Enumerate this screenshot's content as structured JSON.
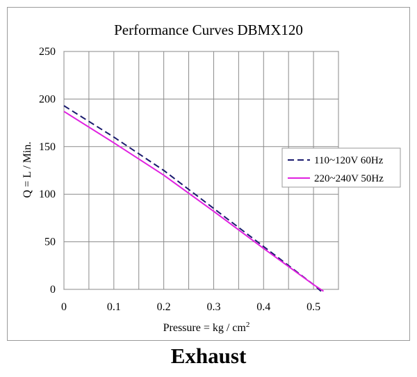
{
  "chart_data": {
    "type": "line",
    "title": "Performance  Curves  DBMX120",
    "xlabel": "Pressure = kg / cm",
    "xlabel_sup": "2",
    "ylabel": "Q = L / Min.",
    "xlim": [
      0,
      0.55
    ],
    "ylim": [
      0,
      250
    ],
    "x_ticks": [
      0,
      0.1,
      0.2,
      0.3,
      0.4,
      0.5
    ],
    "x_tick_labels": [
      "0",
      "0.1",
      "0.2",
      "0.3",
      "0.4",
      "0.5"
    ],
    "y_ticks": [
      0,
      50,
      100,
      150,
      200,
      250
    ],
    "y_tick_labels": [
      "0",
      "50",
      "100",
      "150",
      "200",
      "250"
    ],
    "x_gridlines": [
      0,
      0.05,
      0.1,
      0.15,
      0.2,
      0.25,
      0.3,
      0.35,
      0.4,
      0.45,
      0.5,
      0.55
    ],
    "grid": true,
    "legend_position": "right",
    "series": [
      {
        "name": "110~120V 60Hz",
        "color": "#1a1a6e",
        "style": "dashed",
        "x": [
          0,
          0.1,
          0.2,
          0.3,
          0.4,
          0.5,
          0.515
        ],
        "y": [
          193,
          160,
          125,
          85,
          45,
          5,
          -2
        ]
      },
      {
        "name": "220~240V 50Hz",
        "color": "#e020e0",
        "style": "solid",
        "x": [
          0,
          0.1,
          0.2,
          0.3,
          0.4,
          0.5,
          0.52
        ],
        "y": [
          187,
          154,
          120,
          82,
          43,
          5,
          -2
        ]
      }
    ]
  },
  "caption": "Exhaust"
}
